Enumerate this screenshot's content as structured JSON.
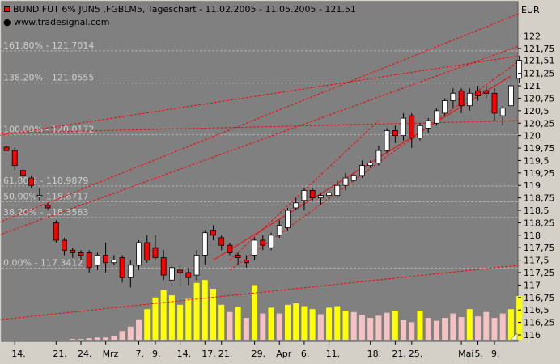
{
  "header": {
    "title": "BUND FUT 6% JUN5 ,FGBLM5, Tageschart - 11.02.2005 - 11.05.2005 - 121.51",
    "site": "● www.tradesignal.com",
    "unit": "EUR"
  },
  "colors": {
    "background": "#808080",
    "up_candle": "#ffffff",
    "down_candle": "#ff0000",
    "volume_high": "#ffff00",
    "volume_low": "#f4c2c2",
    "trendline": "#ff0000",
    "fib_line": "#b0b0b0"
  },
  "chart_data": {
    "type": "candlestick",
    "title": "BUND FUT 6% JUN5 ,FGBLM5, Tageschart - 11.02.2005 - 11.05.2005 - 121.51",
    "ylabel": "EUR",
    "ylim": [
      116,
      122.5
    ],
    "y_ticks": [
      116,
      116.25,
      116.5,
      116.75,
      117,
      117.25,
      117.5,
      117.75,
      118,
      118.25,
      118.5,
      118.75,
      119,
      119.25,
      119.5,
      119.75,
      120,
      120.25,
      120.5,
      120.75,
      121,
      121.25,
      121.51,
      121.75,
      122
    ],
    "y_tick_labels": [
      "116",
      "116,25",
      "116,5",
      "116,75",
      "117",
      "117,25",
      "117,5",
      "117,75",
      "118",
      "118,25",
      "118,5",
      "118,75",
      "119",
      "119,25",
      "119,5",
      "119,75",
      "120",
      "120,25",
      "120,5",
      "120,75",
      "121",
      "121,25",
      "121,51",
      "121,75",
      "122"
    ],
    "x_tick_labels": [
      {
        "i": 1,
        "label": "14."
      },
      {
        "i": 6,
        "label": "21."
      },
      {
        "i": 9,
        "label": "24."
      },
      {
        "i": 12,
        "label": "Mrz"
      },
      {
        "i": 16,
        "label": "7."
      },
      {
        "i": 18,
        "label": "9."
      },
      {
        "i": 21,
        "label": "14."
      },
      {
        "i": 24,
        "label": "17."
      },
      {
        "i": 26,
        "label": "21."
      },
      {
        "i": 30,
        "label": "29."
      },
      {
        "i": 33,
        "label": "Apr"
      },
      {
        "i": 36,
        "label": "6."
      },
      {
        "i": 39,
        "label": "11."
      },
      {
        "i": 44,
        "label": "18."
      },
      {
        "i": 47,
        "label": "21."
      },
      {
        "i": 49,
        "label": "25."
      },
      {
        "i": 55,
        "label": "Mai"
      },
      {
        "i": 57,
        "label": "5."
      },
      {
        "i": 59,
        "label": "9."
      }
    ],
    "fib_levels": [
      {
        "label": "161.80% - 121.7014",
        "value": 121.7014
      },
      {
        "label": "138.20% - 121.0555",
        "value": 121.0555
      },
      {
        "label": "100.00% - 120.0172",
        "value": 120.0172
      },
      {
        "label": "61.80% - 118.9879",
        "value": 118.9879
      },
      {
        "label": "50.00% - 118.6717",
        "value": 118.6717
      },
      {
        "label": "38.20% - 118.3563",
        "value": 118.3563
      },
      {
        "label": "0.00% - 117.3412",
        "value": 117.3412
      }
    ],
    "trendlines": [
      {
        "style": "dashed",
        "from": [
          -1,
          116.3
        ],
        "to": [
          62,
          117.4
        ]
      },
      {
        "style": "dashed",
        "from": [
          -1,
          118.0
        ],
        "to": [
          62,
          121.8
        ]
      },
      {
        "style": "dashed",
        "from": [
          -1,
          118.25
        ],
        "to": [
          62,
          122.45
        ]
      },
      {
        "style": "dashed",
        "from": [
          -1,
          120.0
        ],
        "to": [
          62,
          121.6
        ]
      },
      {
        "style": "dashed",
        "from": [
          -1,
          120.05
        ],
        "to": [
          62,
          120.3
        ]
      },
      {
        "style": "dashed",
        "from": [
          27,
          117.3
        ],
        "to": [
          62,
          121.5
        ]
      },
      {
        "style": "solid",
        "from": [
          25,
          117.5
        ],
        "to": [
          61,
          121.2
        ]
      },
      {
        "style": "dashed",
        "from": [
          27,
          117.5
        ],
        "to": [
          45,
          120.3
        ]
      }
    ],
    "volume_ylim": [
      0,
      100
    ],
    "candles": [
      {
        "o": 119.77,
        "h": 119.8,
        "l": 119.7,
        "c": 119.7,
        "v": 0
      },
      {
        "o": 119.7,
        "h": 119.75,
        "l": 119.3,
        "c": 119.4,
        "v": 0
      },
      {
        "o": 119.3,
        "h": 119.4,
        "l": 119.15,
        "c": 119.2,
        "v": 0
      },
      {
        "o": 119.15,
        "h": 119.2,
        "l": 118.95,
        "c": 119.0,
        "v": 0
      },
      {
        "o": 118.8,
        "h": 118.95,
        "l": 118.7,
        "c": 118.8,
        "v": 0
      },
      {
        "o": 118.6,
        "h": 118.65,
        "l": 118.5,
        "c": 118.55,
        "v": 0
      },
      {
        "o": 118.25,
        "h": 118.3,
        "l": 117.85,
        "c": 117.9,
        "v": 0
      },
      {
        "o": 117.9,
        "h": 117.95,
        "l": 117.6,
        "c": 117.7,
        "v": 0
      },
      {
        "o": 117.7,
        "h": 117.75,
        "l": 117.55,
        "c": 117.65,
        "v": 1
      },
      {
        "o": 117.65,
        "h": 117.7,
        "l": 117.5,
        "c": 117.6,
        "v": 1
      },
      {
        "o": 117.65,
        "h": 117.7,
        "l": 117.25,
        "c": 117.35,
        "v": 2
      },
      {
        "o": 117.4,
        "h": 117.65,
        "l": 117.3,
        "c": 117.6,
        "v": 3
      },
      {
        "o": 117.6,
        "h": 117.85,
        "l": 117.25,
        "c": 117.45,
        "v": 3
      },
      {
        "o": 117.45,
        "h": 117.6,
        "l": 117.4,
        "c": 117.5,
        "v": 5
      },
      {
        "o": 117.55,
        "h": 117.6,
        "l": 117.05,
        "c": 117.15,
        "v": 12
      },
      {
        "o": 117.15,
        "h": 117.5,
        "l": 116.95,
        "c": 117.4,
        "v": 18
      },
      {
        "o": 117.4,
        "h": 117.9,
        "l": 117.3,
        "c": 117.85,
        "v": 28
      },
      {
        "o": 117.85,
        "h": 118.0,
        "l": 117.45,
        "c": 117.5,
        "v": 42
      },
      {
        "o": 117.75,
        "h": 118.0,
        "l": 117.5,
        "c": 117.55,
        "v": 58
      },
      {
        "o": 117.55,
        "h": 117.7,
        "l": 117.1,
        "c": 117.2,
        "v": 68
      },
      {
        "o": 117.1,
        "h": 117.4,
        "l": 117.0,
        "c": 117.35,
        "v": 61
      },
      {
        "o": 117.3,
        "h": 117.4,
        "l": 117.0,
        "c": 117.25,
        "v": 48
      },
      {
        "o": 117.25,
        "h": 117.35,
        "l": 117.0,
        "c": 117.15,
        "v": 56
      },
      {
        "o": 117.2,
        "h": 117.7,
        "l": 117.1,
        "c": 117.6,
        "v": 78
      },
      {
        "o": 117.6,
        "h": 118.1,
        "l": 117.4,
        "c": 118.05,
        "v": 82
      },
      {
        "o": 118.1,
        "h": 118.2,
        "l": 117.9,
        "c": 118.0,
        "v": 70
      },
      {
        "o": 117.95,
        "h": 118.0,
        "l": 117.7,
        "c": 117.8,
        "v": 48
      },
      {
        "o": 117.8,
        "h": 117.85,
        "l": 117.6,
        "c": 117.65,
        "v": 38
      },
      {
        "o": 117.6,
        "h": 117.65,
        "l": 117.4,
        "c": 117.55,
        "v": 45
      },
      {
        "o": 117.5,
        "h": 117.6,
        "l": 117.35,
        "c": 117.45,
        "v": 30
      },
      {
        "o": 117.6,
        "h": 117.95,
        "l": 117.5,
        "c": 117.9,
        "v": 75
      },
      {
        "o": 117.9,
        "h": 118.0,
        "l": 117.7,
        "c": 117.8,
        "v": 36
      },
      {
        "o": 117.75,
        "h": 118.05,
        "l": 117.7,
        "c": 118.0,
        "v": 44
      },
      {
        "o": 118.0,
        "h": 118.3,
        "l": 117.95,
        "c": 118.2,
        "v": 36
      },
      {
        "o": 118.15,
        "h": 118.55,
        "l": 118.1,
        "c": 118.5,
        "v": 48
      },
      {
        "o": 118.55,
        "h": 118.75,
        "l": 118.5,
        "c": 118.65,
        "v": 50
      },
      {
        "o": 118.7,
        "h": 118.95,
        "l": 118.5,
        "c": 118.9,
        "v": 46
      },
      {
        "o": 118.9,
        "h": 118.95,
        "l": 118.7,
        "c": 118.75,
        "v": 42
      },
      {
        "o": 118.75,
        "h": 118.85,
        "l": 118.6,
        "c": 118.8,
        "v": 35
      },
      {
        "o": 118.8,
        "h": 118.95,
        "l": 118.7,
        "c": 118.85,
        "v": 44
      },
      {
        "o": 118.8,
        "h": 119.1,
        "l": 118.75,
        "c": 119.0,
        "v": 46
      },
      {
        "o": 119.0,
        "h": 119.25,
        "l": 118.9,
        "c": 119.15,
        "v": 40
      },
      {
        "o": 119.1,
        "h": 119.25,
        "l": 119.05,
        "c": 119.2,
        "v": 38
      },
      {
        "o": 119.2,
        "h": 119.5,
        "l": 119.15,
        "c": 119.4,
        "v": 34
      },
      {
        "o": 119.4,
        "h": 119.5,
        "l": 119.35,
        "c": 119.45,
        "v": 30
      },
      {
        "o": 119.45,
        "h": 119.8,
        "l": 119.4,
        "c": 119.7,
        "v": 33
      },
      {
        "o": 119.7,
        "h": 120.15,
        "l": 119.65,
        "c": 120.1,
        "v": 37
      },
      {
        "o": 120.1,
        "h": 120.2,
        "l": 119.85,
        "c": 120.0,
        "v": 40
      },
      {
        "o": 120.0,
        "h": 120.45,
        "l": 119.9,
        "c": 120.35,
        "v": 27
      },
      {
        "o": 120.4,
        "h": 120.45,
        "l": 119.75,
        "c": 119.95,
        "v": 24
      },
      {
        "o": 119.95,
        "h": 120.25,
        "l": 119.9,
        "c": 120.2,
        "v": 40
      },
      {
        "o": 120.15,
        "h": 120.35,
        "l": 120.05,
        "c": 120.3,
        "v": 30
      },
      {
        "o": 120.25,
        "h": 120.55,
        "l": 120.2,
        "c": 120.5,
        "v": 26
      },
      {
        "o": 120.45,
        "h": 120.75,
        "l": 120.4,
        "c": 120.7,
        "v": 30
      },
      {
        "o": 120.7,
        "h": 120.95,
        "l": 120.55,
        "c": 120.85,
        "v": 36
      },
      {
        "o": 120.9,
        "h": 120.95,
        "l": 120.45,
        "c": 120.6,
        "v": 31
      },
      {
        "o": 120.6,
        "h": 120.95,
        "l": 120.5,
        "c": 120.85,
        "v": 42
      },
      {
        "o": 120.9,
        "h": 121.0,
        "l": 120.7,
        "c": 120.8,
        "v": 32
      },
      {
        "o": 120.9,
        "h": 121.0,
        "l": 120.75,
        "c": 120.85,
        "v": 38
      },
      {
        "o": 120.85,
        "h": 120.95,
        "l": 120.3,
        "c": 120.45,
        "v": 30
      },
      {
        "o": 120.4,
        "h": 120.6,
        "l": 120.2,
        "c": 120.55,
        "v": 36
      },
      {
        "o": 120.6,
        "h": 121.05,
        "l": 120.55,
        "c": 121.0,
        "v": 42
      },
      {
        "o": 121.15,
        "h": 121.6,
        "l": 121.05,
        "c": 121.51,
        "v": 60
      }
    ]
  }
}
